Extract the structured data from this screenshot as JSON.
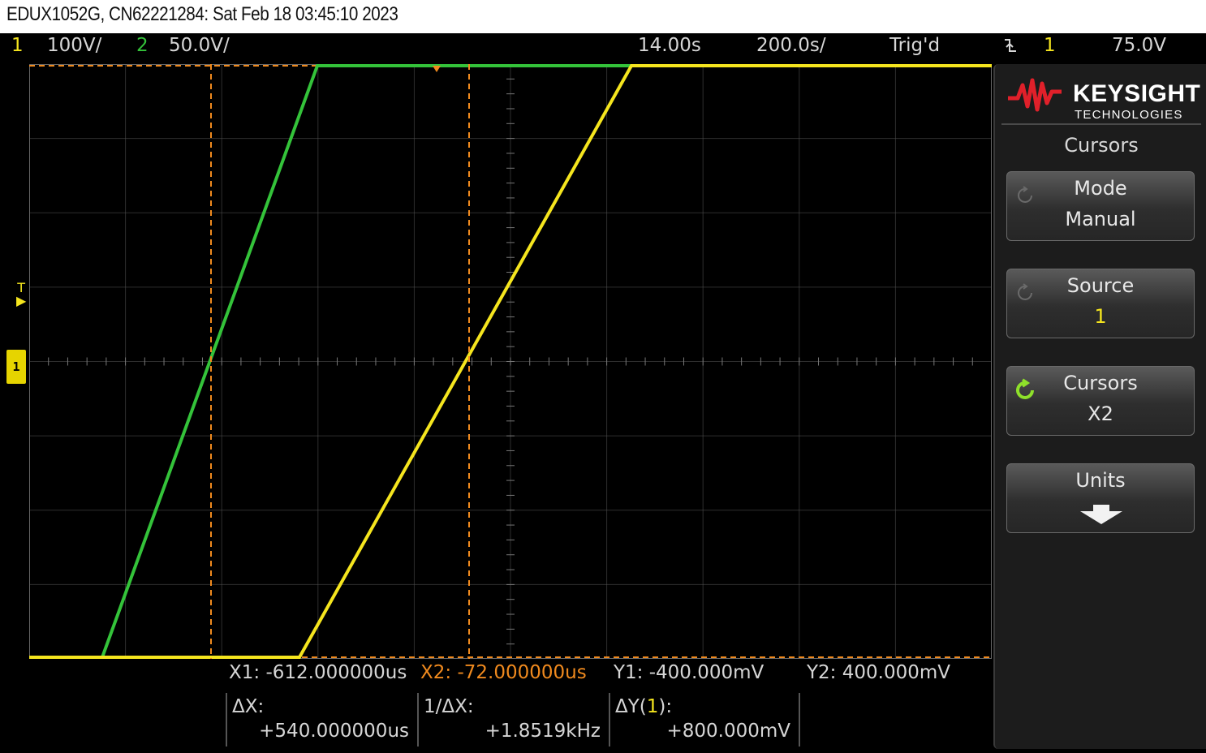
{
  "caption": "EDUX1052G, CN62221284: Sat Feb 18 03:45:10 2023",
  "status": {
    "ch1_number": "1",
    "ch1_scale": "100V/",
    "ch2_number": "2",
    "ch2_scale": "50.0V/",
    "time_delay": "14.00s",
    "time_scale": "200.0s/",
    "trigger_state": "Trig'd",
    "trigger_slope_icon": "falling-edge-icon",
    "trigger_source": "1",
    "trigger_level": "75.0V"
  },
  "cursor_readout": {
    "x1": "X1: -612.000000us",
    "x2": "X2: -72.000000us",
    "y1": "Y1: -400.000mV",
    "y2": "Y2:  400.000mV"
  },
  "measurements": {
    "delta_x_label": "ΔX:",
    "delta_x_value": "+540.000000us",
    "inv_delta_x_label": "1/ΔX:",
    "inv_delta_x_value": "+1.8519kHz",
    "delta_y_label_prefix": "ΔY(",
    "delta_y_label_channel": "1",
    "delta_y_label_suffix": "):",
    "delta_y_value": "+800.000mV"
  },
  "markers": {
    "channel_ground_label": "1",
    "trigger_marker_label": "T"
  },
  "colors": {
    "channel1": "#f5e51e",
    "channel2": "#34c33a",
    "cursor": "#f08a1e",
    "grid": "#555555",
    "softkey_active_icon": "#8ee02a"
  },
  "softkey_panel": {
    "logo_word": "KEYSIGHT",
    "logo_sub": "TECHNOLOGIES",
    "menu_title": "Cursors",
    "keys": [
      {
        "label": "Mode",
        "value": "Manual",
        "icon": "rotate-knob-icon"
      },
      {
        "label": "Source",
        "value": "1",
        "icon": "rotate-knob-icon"
      },
      {
        "label": "Cursors",
        "value": "X2",
        "icon": "active-knob-icon"
      },
      {
        "label": "Units",
        "value": "",
        "icon": "down-arrow-icon"
      }
    ]
  }
}
